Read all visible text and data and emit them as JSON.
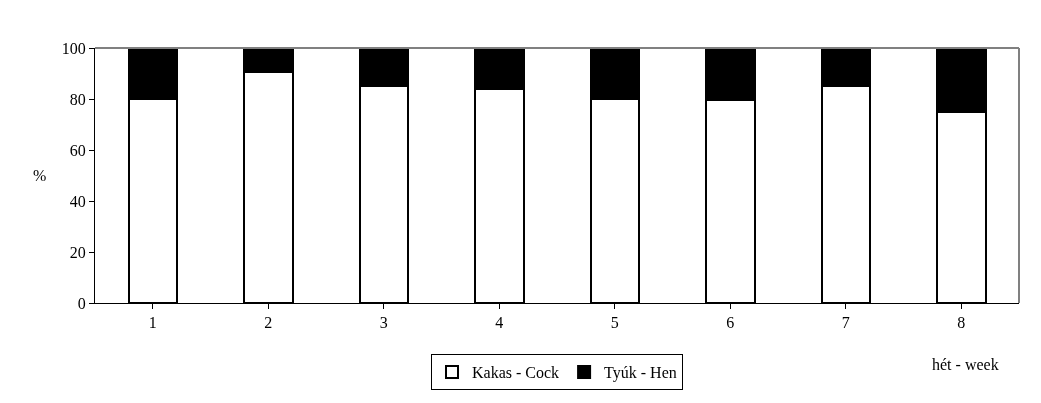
{
  "chart_data": {
    "type": "bar",
    "stacked": true,
    "categories": [
      "1",
      "2",
      "3",
      "4",
      "5",
      "6",
      "7",
      "8"
    ],
    "series": [
      {
        "name": "Kakas - Cock",
        "color": "#ffffff",
        "values": [
          80,
          90.5,
          85,
          84,
          80,
          79.5,
          85,
          75
        ]
      },
      {
        "name": "Tyúk - Hen",
        "color": "#000000",
        "values": [
          20,
          9.5,
          15,
          16,
          20,
          20.5,
          15,
          25
        ]
      }
    ],
    "ylim": [
      0,
      100
    ],
    "yticks": [
      0,
      20,
      40,
      60,
      80,
      100
    ],
    "ylabel": "%",
    "xlabel": "hét - week",
    "legend": "bottom"
  }
}
